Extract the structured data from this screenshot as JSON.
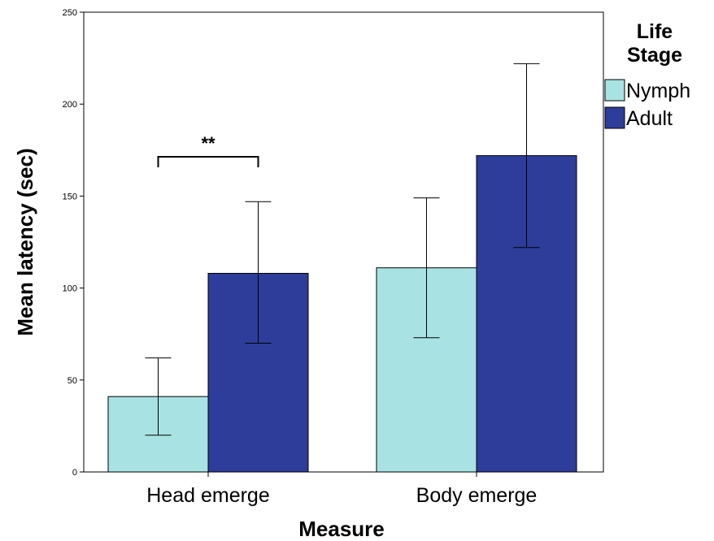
{
  "chart_data": {
    "type": "bar",
    "categories": [
      "Head emerge",
      "Body emerge"
    ],
    "series": [
      {
        "name": "Nymph",
        "values": [
          41,
          111
        ],
        "error_low": [
          20,
          73
        ],
        "error_high": [
          62,
          149
        ],
        "color": "#a9e2e2"
      },
      {
        "name": "Adult",
        "values": [
          108,
          172
        ],
        "error_low": [
          70,
          122
        ],
        "error_high": [
          147,
          222
        ],
        "color": "#2e3d9a"
      }
    ],
    "xlabel": "Measure",
    "ylabel": "Mean latency (sec)",
    "ylim": [
      0,
      250
    ],
    "yticks": [
      "0",
      "50",
      "100",
      "150",
      "200",
      "250"
    ],
    "legend": {
      "title_line1": "Life",
      "title_line2": "Stage",
      "position": "right"
    },
    "annotation": {
      "text": "**",
      "category": "Head emerge"
    },
    "grid": false
  }
}
